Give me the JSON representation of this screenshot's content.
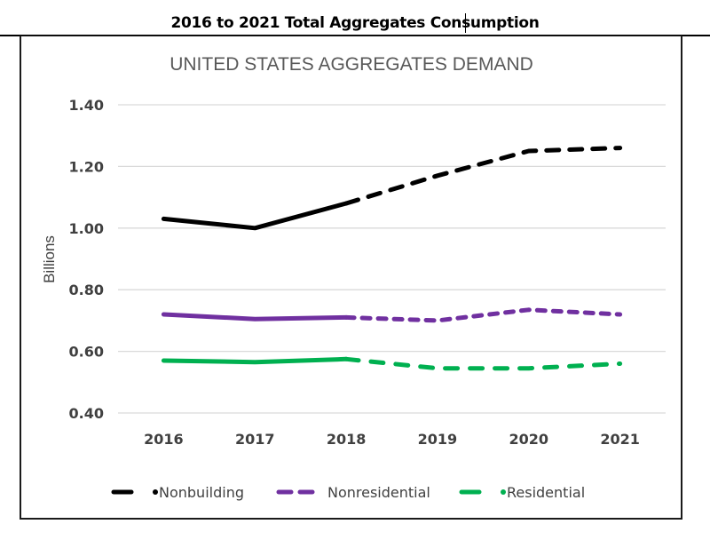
{
  "document": {
    "heading": "2016 to 2021 Total Aggregates Consumption"
  },
  "chart_data": {
    "type": "line",
    "title": "UNITED STATES AGGREGATES DEMAND",
    "xlabel": "",
    "ylabel": "Billions",
    "categories": [
      "2016",
      "2017",
      "2018",
      "2019",
      "2020",
      "2021"
    ],
    "ylim": [
      0.4,
      1.4
    ],
    "yticks": [
      0.4,
      0.6,
      0.8,
      1.0,
      1.2,
      1.4
    ],
    "ytick_labels": [
      "0.40",
      "0.60",
      "0.80",
      "1.00",
      "1.20",
      "1.40"
    ],
    "grid": true,
    "legend_position": "bottom",
    "actual_through": "2018",
    "projected_from": "2018",
    "series": [
      {
        "name": "Nonbuilding",
        "color": "#000000",
        "values": [
          1.03,
          1.0,
          1.08,
          1.17,
          1.25,
          1.26
        ]
      },
      {
        "name": "Nonresidential",
        "color": "#7030A0",
        "values": [
          0.72,
          0.705,
          0.71,
          0.7,
          0.735,
          0.72
        ]
      },
      {
        "name": "Residential",
        "color": "#00B050",
        "values": [
          0.57,
          0.565,
          0.575,
          0.545,
          0.545,
          0.56
        ]
      }
    ]
  }
}
